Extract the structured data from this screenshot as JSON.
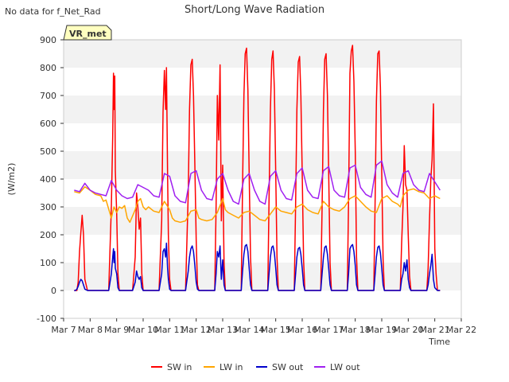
{
  "note": "No data for f_Net_Rad",
  "site_badge": "VR_met",
  "chart_data": {
    "type": "line",
    "title": "Short/Long Wave Radiation",
    "xlabel": "Time",
    "ylabel": "(W/m2)",
    "xlim": [
      7,
      22
    ],
    "ylim": [
      -100,
      900
    ],
    "yticks": [
      -100,
      0,
      100,
      200,
      300,
      400,
      500,
      600,
      700,
      800,
      900
    ],
    "xticks": [
      {
        "value": 7,
        "label": "Mar 7"
      },
      {
        "value": 8,
        "label": "Mar 8"
      },
      {
        "value": 9,
        "label": "Mar 9"
      },
      {
        "value": 10,
        "label": "Mar 10"
      },
      {
        "value": 11,
        "label": "Mar 11"
      },
      {
        "value": 12,
        "label": "Mar 12"
      },
      {
        "value": 13,
        "label": "Mar 13"
      },
      {
        "value": 14,
        "label": "Mar 14"
      },
      {
        "value": 15,
        "label": "Mar 15"
      },
      {
        "value": 16,
        "label": "Mar 16"
      },
      {
        "value": 17,
        "label": "Mar 17"
      },
      {
        "value": 18,
        "label": "Mar 18"
      },
      {
        "value": 19,
        "label": "Mar 19"
      },
      {
        "value": 20,
        "label": "Mar 20"
      },
      {
        "value": 21,
        "label": "Mar 21"
      },
      {
        "value": 22,
        "label": "Mar 22"
      }
    ],
    "grid": "horizontal bands",
    "legend_position": "bottom",
    "series": [
      {
        "name": "SW in",
        "color": "#ff0000",
        "x": [
          7.4,
          7.45,
          7.5,
          7.55,
          7.6,
          7.65,
          7.7,
          7.75,
          7.8,
          7.9,
          8.0,
          8.3,
          8.5,
          8.7,
          8.8,
          8.85,
          8.88,
          8.9,
          8.93,
          8.95,
          9.0,
          9.05,
          9.1,
          9.2,
          9.5,
          9.6,
          9.7,
          9.75,
          9.8,
          9.85,
          9.9,
          9.95,
          10.0,
          10.05,
          10.1,
          10.3,
          10.5,
          10.6,
          10.7,
          10.75,
          10.8,
          10.85,
          10.88,
          10.92,
          10.95,
          11.0,
          11.05,
          11.1,
          11.2,
          11.5,
          11.6,
          11.7,
          11.75,
          11.8,
          11.85,
          11.9,
          11.95,
          12.0,
          12.05,
          12.1,
          12.2,
          12.5,
          12.6,
          12.7,
          12.75,
          12.8,
          12.85,
          12.9,
          12.95,
          13.0,
          13.05,
          13.1,
          13.2,
          13.5,
          13.6,
          13.7,
          13.75,
          13.8,
          13.85,
          13.9,
          13.95,
          14.0,
          14.05,
          14.1,
          14.2,
          14.5,
          14.6,
          14.7,
          14.75,
          14.8,
          14.85,
          14.9,
          14.95,
          15.0,
          15.05,
          15.1,
          15.2,
          15.5,
          15.6,
          15.7,
          15.75,
          15.8,
          15.85,
          15.9,
          15.95,
          16.0,
          16.05,
          16.1,
          16.2,
          16.5,
          16.6,
          16.7,
          16.75,
          16.8,
          16.85,
          16.9,
          16.95,
          17.0,
          17.05,
          17.1,
          17.2,
          17.5,
          17.6,
          17.7,
          17.75,
          17.8,
          17.85,
          17.9,
          17.95,
          18.0,
          18.05,
          18.1,
          18.2,
          18.5,
          18.6,
          18.7,
          18.75,
          18.8,
          18.85,
          18.9,
          18.95,
          19.0,
          19.05,
          19.1,
          19.2,
          19.5,
          19.6,
          19.7,
          19.75,
          19.8,
          19.85,
          19.9,
          19.95,
          20.0,
          20.05,
          20.1,
          20.2,
          20.5,
          20.6,
          20.7,
          20.75,
          20.8,
          20.85,
          20.9,
          20.95,
          21.0,
          21.05,
          21.1,
          21.2
        ],
        "y": [
          0,
          0,
          0,
          30,
          140,
          210,
          270,
          200,
          40,
          0,
          0,
          0,
          0,
          0,
          300,
          550,
          780,
          650,
          770,
          430,
          280,
          60,
          0,
          0,
          0,
          0,
          120,
          350,
          300,
          220,
          260,
          60,
          0,
          0,
          0,
          0,
          0,
          0,
          250,
          640,
          790,
          650,
          800,
          420,
          200,
          40,
          0,
          0,
          0,
          0,
          0,
          350,
          650,
          810,
          830,
          700,
          450,
          180,
          20,
          0,
          0,
          0,
          0,
          0,
          300,
          700,
          540,
          810,
          250,
          450,
          100,
          0,
          0,
          0,
          0,
          0,
          380,
          700,
          850,
          870,
          720,
          420,
          120,
          0,
          0,
          0,
          0,
          0,
          330,
          650,
          830,
          860,
          720,
          420,
          120,
          0,
          0,
          0,
          0,
          0,
          310,
          650,
          820,
          840,
          700,
          420,
          110,
          0,
          0,
          0,
          0,
          0,
          300,
          650,
          830,
          850,
          700,
          420,
          100,
          0,
          0,
          0,
          0,
          0,
          330,
          780,
          860,
          880,
          750,
          500,
          120,
          0,
          0,
          0,
          0,
          0,
          330,
          680,
          850,
          860,
          730,
          420,
          110,
          0,
          0,
          0,
          0,
          0,
          170,
          300,
          520,
          380,
          360,
          200,
          50,
          0,
          0,
          0,
          0,
          0,
          80,
          250,
          400,
          470,
          670,
          150,
          60,
          0,
          0
        ]
      },
      {
        "name": "LW in",
        "color": "#ffa500",
        "x": [
          7.4,
          7.6,
          7.8,
          8.0,
          8.2,
          8.4,
          8.5,
          8.6,
          8.8,
          8.9,
          9.0,
          9.1,
          9.2,
          9.3,
          9.4,
          9.5,
          9.7,
          9.8,
          9.9,
          10.0,
          10.1,
          10.2,
          10.4,
          10.6,
          10.8,
          11.0,
          11.1,
          11.2,
          11.4,
          11.6,
          11.8,
          12.0,
          12.1,
          12.2,
          12.4,
          12.6,
          12.8,
          13.0,
          13.1,
          13.2,
          13.4,
          13.6,
          13.8,
          14.0,
          14.2,
          14.4,
          14.6,
          14.8,
          15.0,
          15.2,
          15.4,
          15.6,
          15.8,
          16.0,
          16.2,
          16.4,
          16.6,
          16.8,
          17.0,
          17.2,
          17.4,
          17.6,
          17.8,
          18.0,
          18.2,
          18.4,
          18.6,
          18.8,
          19.0,
          19.2,
          19.4,
          19.6,
          19.7,
          19.8,
          20.0,
          20.2,
          20.4,
          20.6,
          20.8,
          21.0,
          21.1,
          21.2
        ],
        "y": [
          355,
          350,
          372,
          360,
          345,
          340,
          320,
          325,
          260,
          300,
          280,
          300,
          295,
          305,
          260,
          245,
          290,
          320,
          330,
          300,
          290,
          300,
          285,
          280,
          320,
          290,
          260,
          250,
          245,
          250,
          285,
          290,
          260,
          255,
          250,
          255,
          280,
          330,
          290,
          280,
          270,
          260,
          280,
          285,
          270,
          255,
          250,
          275,
          300,
          285,
          280,
          275,
          300,
          310,
          290,
          280,
          275,
          320,
          300,
          290,
          285,
          300,
          330,
          340,
          320,
          300,
          285,
          280,
          330,
          340,
          320,
          310,
          300,
          340,
          360,
          365,
          355,
          350,
          330,
          340,
          335,
          330
        ]
      },
      {
        "name": "SW out",
        "color": "#0000cc",
        "x": [
          7.4,
          7.45,
          7.5,
          7.55,
          7.6,
          7.65,
          7.7,
          7.75,
          7.8,
          7.9,
          8.0,
          8.3,
          8.5,
          8.7,
          8.8,
          8.85,
          8.88,
          8.9,
          8.93,
          8.95,
          9.0,
          9.05,
          9.1,
          9.2,
          9.5,
          9.6,
          9.7,
          9.75,
          9.8,
          9.85,
          9.9,
          9.95,
          10.0,
          10.05,
          10.1,
          10.3,
          10.5,
          10.6,
          10.7,
          10.75,
          10.8,
          10.85,
          10.88,
          10.92,
          10.95,
          11.0,
          11.05,
          11.1,
          11.2,
          11.5,
          11.6,
          11.7,
          11.75,
          11.8,
          11.85,
          11.9,
          11.95,
          12.0,
          12.05,
          12.1,
          12.2,
          12.5,
          12.6,
          12.7,
          12.75,
          12.8,
          12.85,
          12.9,
          12.95,
          13.0,
          13.05,
          13.1,
          13.2,
          13.5,
          13.6,
          13.7,
          13.75,
          13.8,
          13.85,
          13.9,
          13.95,
          14.0,
          14.05,
          14.1,
          14.2,
          14.5,
          14.6,
          14.7,
          14.75,
          14.8,
          14.85,
          14.9,
          14.95,
          15.0,
          15.05,
          15.1,
          15.2,
          15.5,
          15.6,
          15.7,
          15.75,
          15.8,
          15.85,
          15.9,
          15.95,
          16.0,
          16.05,
          16.1,
          16.2,
          16.5,
          16.6,
          16.7,
          16.75,
          16.8,
          16.85,
          16.9,
          16.95,
          17.0,
          17.05,
          17.1,
          17.2,
          17.5,
          17.6,
          17.7,
          17.75,
          17.8,
          17.85,
          17.9,
          17.95,
          18.0,
          18.05,
          18.1,
          18.2,
          18.5,
          18.6,
          18.7,
          18.75,
          18.8,
          18.85,
          18.9,
          18.95,
          19.0,
          19.05,
          19.1,
          19.2,
          19.5,
          19.6,
          19.7,
          19.75,
          19.8,
          19.85,
          19.9,
          19.95,
          20.0,
          20.05,
          20.1,
          20.2,
          20.5,
          20.6,
          20.7,
          20.75,
          20.8,
          20.85,
          20.9,
          20.95,
          21.0,
          21.05,
          21.1,
          21.2
        ],
        "y": [
          0,
          0,
          5,
          15,
          30,
          40,
          35,
          20,
          5,
          0,
          0,
          0,
          0,
          0,
          60,
          120,
          150,
          100,
          140,
          80,
          60,
          10,
          0,
          0,
          0,
          0,
          30,
          70,
          50,
          40,
          50,
          10,
          0,
          0,
          0,
          0,
          0,
          0,
          60,
          140,
          150,
          120,
          170,
          80,
          40,
          5,
          0,
          0,
          0,
          0,
          0,
          70,
          120,
          150,
          160,
          140,
          90,
          30,
          5,
          0,
          0,
          0,
          0,
          0,
          60,
          140,
          120,
          160,
          40,
          110,
          20,
          0,
          0,
          0,
          0,
          0,
          70,
          130,
          160,
          165,
          140,
          80,
          20,
          0,
          0,
          0,
          0,
          0,
          60,
          120,
          155,
          160,
          135,
          80,
          20,
          0,
          0,
          0,
          0,
          0,
          60,
          120,
          150,
          155,
          130,
          80,
          20,
          0,
          0,
          0,
          0,
          0,
          60,
          120,
          155,
          160,
          130,
          80,
          20,
          0,
          0,
          0,
          0,
          0,
          60,
          150,
          160,
          165,
          140,
          90,
          20,
          0,
          0,
          0,
          0,
          0,
          60,
          120,
          155,
          160,
          135,
          80,
          20,
          0,
          0,
          0,
          0,
          0,
          40,
          60,
          100,
          70,
          110,
          40,
          10,
          0,
          0,
          0,
          0,
          0,
          20,
          60,
          90,
          130,
          40,
          10,
          5,
          0,
          0
        ]
      },
      {
        "name": "LW out",
        "color": "#a020f0",
        "x": [
          7.4,
          7.6,
          7.8,
          8.0,
          8.2,
          8.4,
          8.6,
          8.8,
          9.0,
          9.2,
          9.4,
          9.6,
          9.8,
          10.0,
          10.2,
          10.4,
          10.6,
          10.8,
          11.0,
          11.2,
          11.4,
          11.6,
          11.8,
          12.0,
          12.2,
          12.4,
          12.6,
          12.8,
          13.0,
          13.2,
          13.4,
          13.6,
          13.8,
          14.0,
          14.2,
          14.4,
          14.6,
          14.8,
          15.0,
          15.2,
          15.4,
          15.6,
          15.8,
          16.0,
          16.2,
          16.4,
          16.6,
          16.8,
          17.0,
          17.2,
          17.4,
          17.6,
          17.8,
          18.0,
          18.2,
          18.4,
          18.6,
          18.8,
          19.0,
          19.2,
          19.4,
          19.6,
          19.8,
          20.0,
          20.2,
          20.4,
          20.6,
          20.8,
          21.0,
          21.2
        ],
        "y": [
          360,
          355,
          385,
          360,
          350,
          345,
          340,
          395,
          360,
          340,
          330,
          335,
          380,
          370,
          360,
          340,
          335,
          420,
          410,
          340,
          320,
          315,
          420,
          430,
          360,
          330,
          325,
          400,
          420,
          360,
          320,
          310,
          400,
          420,
          360,
          320,
          310,
          410,
          430,
          360,
          330,
          325,
          420,
          440,
          360,
          335,
          330,
          430,
          445,
          360,
          340,
          335,
          440,
          450,
          370,
          345,
          335,
          450,
          465,
          380,
          350,
          335,
          420,
          430,
          380,
          360,
          355,
          420,
          390,
          360
        ]
      }
    ]
  }
}
